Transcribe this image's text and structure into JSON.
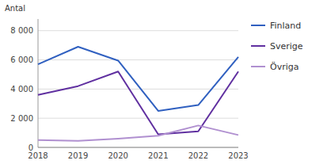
{
  "chart_data": {
    "type": "line",
    "ylabel": "Antal",
    "x": [
      2018,
      2019,
      2020,
      2021,
      2022,
      2023
    ],
    "series": [
      {
        "name": "Finland",
        "color": "#3060c0",
        "values": [
          5700,
          6900,
          5950,
          2500,
          2900,
          6200
        ]
      },
      {
        "name": "Sverige",
        "color": "#6030a0",
        "values": [
          3600,
          4200,
          5200,
          900,
          1100,
          5200
        ]
      },
      {
        "name": "Övriga",
        "color": "#b090d0",
        "values": [
          500,
          450,
          600,
          800,
          1500,
          850
        ]
      }
    ],
    "xlim": [
      2018,
      2023
    ],
    "xticks": [
      2018,
      2019,
      2020,
      2021,
      2022,
      2023
    ],
    "ylim": [
      0,
      8800
    ],
    "yticks": [
      0,
      {
        "value": 2000,
        "label": "2 000"
      },
      {
        "value": 4000,
        "label": "4 000"
      },
      {
        "value": 6000,
        "label": "6 000"
      },
      {
        "value": 8000,
        "label": "8 000"
      }
    ],
    "grid": true,
    "legend": "right"
  }
}
